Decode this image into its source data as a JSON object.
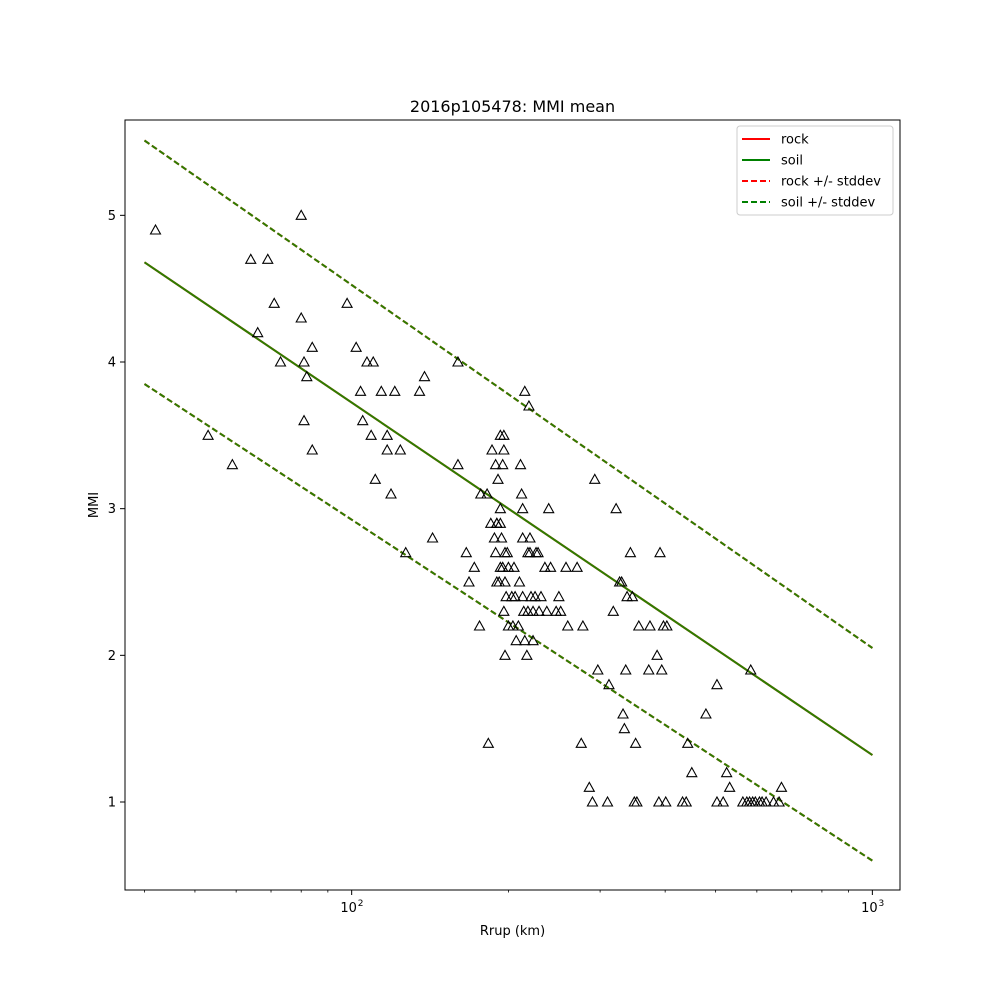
{
  "chart_data": {
    "type": "scatter",
    "title": "2016p105478: MMI mean",
    "xlabel": "Rrup (km)",
    "ylabel": "MMI",
    "xscale": "log",
    "xlim": [
      36.7,
      1130
    ],
    "ylim": [
      0.4,
      5.65
    ],
    "x_tick_labels": [
      {
        "value": 100,
        "label": "10",
        "exp": "2"
      },
      {
        "value": 1000,
        "label": "10",
        "exp": "3"
      }
    ],
    "y_ticks": [
      1,
      2,
      3,
      4,
      5
    ],
    "y_tick_labels": [
      "1",
      "2",
      "3",
      "4",
      "5"
    ],
    "grid": false,
    "legend": {
      "position": "top-right",
      "entries": [
        {
          "label": "rock",
          "color": "#ff0000",
          "style": "solid"
        },
        {
          "label": "soil",
          "color": "#008000",
          "style": "solid"
        },
        {
          "label": "rock +/- stddev",
          "color": "#ff0000",
          "style": "dashed"
        },
        {
          "label": "soil +/- stddev",
          "color": "#008000",
          "style": "dashed"
        }
      ]
    },
    "lines": [
      {
        "name": "rock",
        "color": "#ff0000",
        "style": "solid",
        "x": [
          40,
          1000
        ],
        "y": [
          4.68,
          1.32
        ]
      },
      {
        "name": "rock +/- stddev",
        "color": "#ff0000",
        "style": "dashed",
        "x": [
          40,
          1000
        ],
        "y": [
          5.51,
          2.05
        ]
      },
      {
        "name": "rock +/- stddev",
        "color": "#ff0000",
        "style": "dashed",
        "x": [
          40,
          1000
        ],
        "y": [
          3.85,
          0.6
        ]
      },
      {
        "name": "soil",
        "color": "#2e7d00",
        "style": "solid",
        "x": [
          40,
          1000
        ],
        "y": [
          4.68,
          1.32
        ]
      },
      {
        "name": "soil +/- stddev",
        "color": "#2e7d00",
        "style": "dashed",
        "x": [
          40,
          1000
        ],
        "y": [
          5.51,
          2.05
        ]
      },
      {
        "name": "soil +/- stddev",
        "color": "#2e7d00",
        "style": "dashed",
        "x": [
          40,
          1000
        ],
        "y": [
          3.85,
          0.6
        ]
      }
    ],
    "points": [
      [
        42,
        4.9
      ],
      [
        53,
        3.5
      ],
      [
        59,
        3.3
      ],
      [
        64,
        4.7
      ],
      [
        69,
        4.7
      ],
      [
        66,
        4.2
      ],
      [
        73,
        4.0
      ],
      [
        71,
        4.4
      ],
      [
        80,
        5.0
      ],
      [
        80,
        4.3
      ],
      [
        81,
        4.0
      ],
      [
        82,
        3.9
      ],
      [
        84,
        4.1
      ],
      [
        81,
        3.6
      ],
      [
        84,
        3.4
      ],
      [
        98,
        4.4
      ],
      [
        102,
        4.1
      ],
      [
        104,
        3.8
      ],
      [
        107,
        4.0
      ],
      [
        110,
        4.0
      ],
      [
        105,
        3.6
      ],
      [
        109,
        3.5
      ],
      [
        111,
        3.2
      ],
      [
        114,
        3.8
      ],
      [
        117,
        3.5
      ],
      [
        117,
        3.4
      ],
      [
        119,
        3.1
      ],
      [
        121,
        3.8
      ],
      [
        124,
        3.4
      ],
      [
        135,
        3.8
      ],
      [
        138,
        3.9
      ],
      [
        143,
        2.8
      ],
      [
        127,
        2.7
      ],
      [
        160,
        4.0
      ],
      [
        160,
        3.3
      ],
      [
        166,
        2.7
      ],
      [
        168,
        2.5
      ],
      [
        172,
        2.6
      ],
      [
        176,
        2.2
      ],
      [
        182,
        3.1
      ],
      [
        177,
        3.1
      ],
      [
        186,
        3.4
      ],
      [
        189,
        3.3
      ],
      [
        191,
        3.2
      ],
      [
        193,
        3.0
      ],
      [
        193,
        2.9
      ],
      [
        196,
        3.4
      ],
      [
        193,
        3.5
      ],
      [
        196,
        3.5
      ],
      [
        195,
        3.3
      ],
      [
        190,
        2.9
      ],
      [
        189,
        2.7
      ],
      [
        190,
        2.5
      ],
      [
        185,
        2.9
      ],
      [
        188,
        2.8
      ],
      [
        194,
        2.8
      ],
      [
        197,
        2.7
      ],
      [
        199,
        2.7
      ],
      [
        200,
        2.6
      ],
      [
        197,
        2.5
      ],
      [
        193,
        2.6
      ],
      [
        192,
        2.5
      ],
      [
        196,
        2.3
      ],
      [
        198,
        2.4
      ],
      [
        200,
        2.2
      ],
      [
        203,
        2.4
      ],
      [
        204,
        2.2
      ],
      [
        205,
        2.6
      ],
      [
        206,
        2.4
      ],
      [
        207,
        2.1
      ],
      [
        209,
        2.2
      ],
      [
        211,
        3.3
      ],
      [
        212,
        3.1
      ],
      [
        210,
        2.5
      ],
      [
        213,
        3.0
      ],
      [
        213,
        2.8
      ],
      [
        213,
        2.4
      ],
      [
        214,
        2.3
      ],
      [
        215,
        2.1
      ],
      [
        215,
        3.8
      ],
      [
        218,
        2.3
      ],
      [
        218,
        2.7
      ],
      [
        217,
        2.0
      ],
      [
        219,
        3.7
      ],
      [
        220,
        2.8
      ],
      [
        220,
        2.7
      ],
      [
        221,
        2.4
      ],
      [
        223,
        2.3
      ],
      [
        223,
        2.1
      ],
      [
        225,
        2.4
      ],
      [
        226,
        2.7
      ],
      [
        228,
        2.7
      ],
      [
        229,
        2.3
      ],
      [
        231,
        2.4
      ],
      [
        235,
        2.6
      ],
      [
        237,
        2.3
      ],
      [
        239,
        3.0
      ],
      [
        241,
        2.6
      ],
      [
        247,
        2.3
      ],
      [
        250,
        2.4
      ],
      [
        252,
        2.3
      ],
      [
        258,
        2.6
      ],
      [
        260,
        2.2
      ],
      [
        271,
        2.6
      ],
      [
        276,
        1.4
      ],
      [
        278,
        2.2
      ],
      [
        286,
        1.1
      ],
      [
        290,
        1.0
      ],
      [
        293,
        3.2
      ],
      [
        297,
        1.9
      ],
      [
        312,
        1.8
      ],
      [
        318,
        2.3
      ],
      [
        322,
        3.0
      ],
      [
        327,
        2.5
      ],
      [
        330,
        2.5
      ],
      [
        332,
        1.6
      ],
      [
        334,
        1.5
      ],
      [
        336,
        1.9
      ],
      [
        338,
        2.4
      ],
      [
        343,
        2.7
      ],
      [
        346,
        2.4
      ],
      [
        349,
        1.0
      ],
      [
        351,
        1.4
      ],
      [
        353,
        1.0
      ],
      [
        356,
        2.2
      ],
      [
        372,
        1.9
      ],
      [
        374,
        2.2
      ],
      [
        386,
        2.0
      ],
      [
        389,
        1.0
      ],
      [
        391,
        2.7
      ],
      [
        394,
        1.9
      ],
      [
        397,
        2.2
      ],
      [
        401,
        1.0
      ],
      [
        403,
        2.2
      ],
      [
        432,
        1.0
      ],
      [
        439,
        1.0
      ],
      [
        442,
        1.4
      ],
      [
        450,
        1.2
      ],
      [
        479,
        1.6
      ],
      [
        503,
        1.8
      ],
      [
        503,
        1.0
      ],
      [
        517,
        1.0
      ],
      [
        525,
        1.2
      ],
      [
        532,
        1.1
      ],
      [
        564,
        1.0
      ],
      [
        574,
        1.0
      ],
      [
        581,
        1.0
      ],
      [
        584,
        1.9
      ],
      [
        589,
        1.0
      ],
      [
        596,
        1.0
      ],
      [
        607,
        1.0
      ],
      [
        614,
        1.0
      ],
      [
        625,
        1.0
      ],
      [
        646,
        1.0
      ],
      [
        662,
        1.0
      ],
      [
        669,
        1.1
      ],
      [
        310,
        1.0
      ],
      [
        183,
        1.4
      ],
      [
        190,
        2.9
      ],
      [
        195,
        2.6
      ],
      [
        197,
        2.0
      ]
    ]
  }
}
